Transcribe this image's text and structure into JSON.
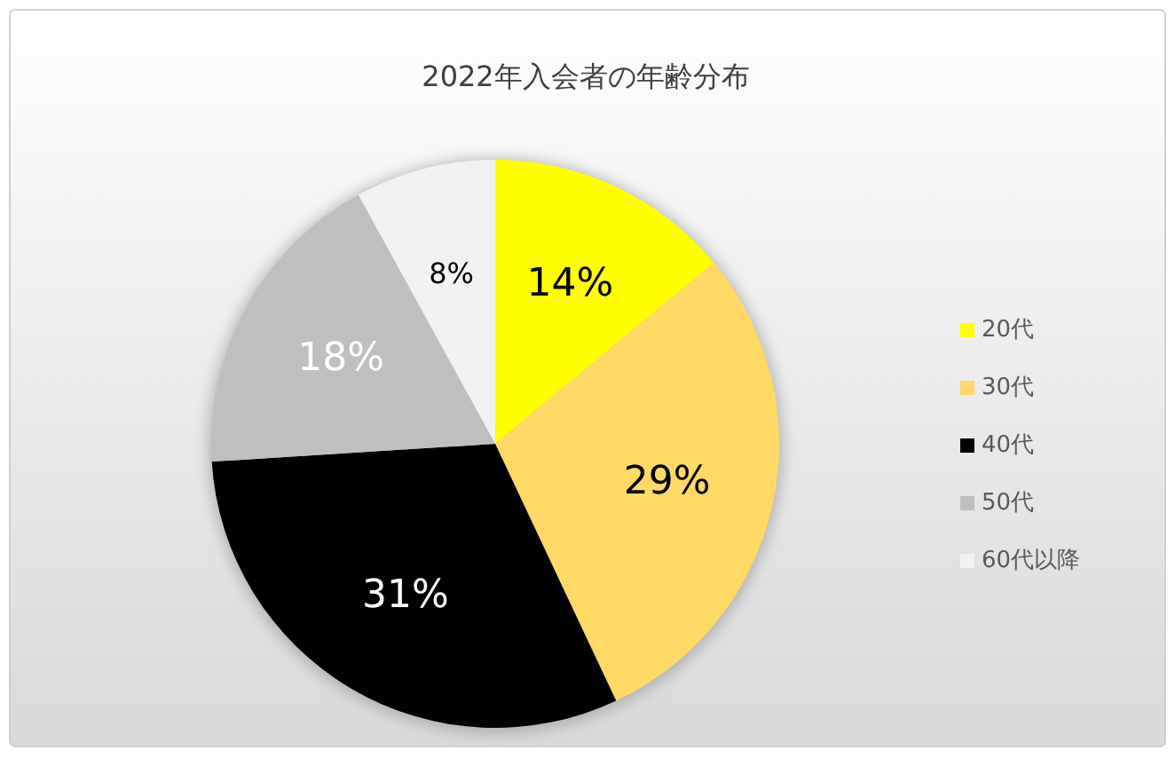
{
  "chart_data": {
    "type": "pie",
    "title": "2022年入会者の年齢分布",
    "categories": [
      "20代",
      "30代",
      "40代",
      "50代",
      "60代以降"
    ],
    "values": [
      14,
      29,
      31,
      18,
      8
    ],
    "colors": [
      "#ffff00",
      "#ffd966",
      "#000000",
      "#bfbfbf",
      "#f2f2f2"
    ],
    "value_labels": [
      "14%",
      "29%",
      "31%",
      "18%",
      "8%"
    ],
    "legend": "right"
  }
}
